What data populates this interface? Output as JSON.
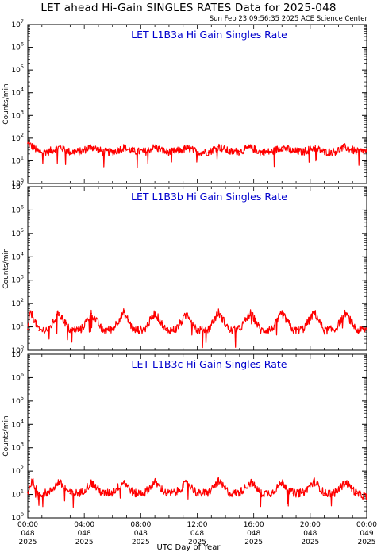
{
  "header": {
    "title": "LET ahead Hi-Gain SINGLES RATES Data for 2025-048",
    "timestamp": "Sun Feb 23 09:56:35 2025 ACE Science Center"
  },
  "colors": {
    "data": "#ff0000",
    "panel_title": "#0000cc",
    "axes": "#000000"
  },
  "x_axis": {
    "label": "UTC Day of Year",
    "ticks": [
      {
        "time": "00:00",
        "day": "048",
        "year": "2025"
      },
      {
        "time": "04:00",
        "day": "048",
        "year": "2025"
      },
      {
        "time": "08:00",
        "day": "048",
        "year": "2025"
      },
      {
        "time": "12:00",
        "day": "048",
        "year": "2025"
      },
      {
        "time": "16:00",
        "day": "048",
        "year": "2025"
      },
      {
        "time": "20:00",
        "day": "048",
        "year": "2025"
      },
      {
        "time": "00:00",
        "day": "049",
        "year": "2025"
      }
    ]
  },
  "y_axis": {
    "label": "Counts/min",
    "scale": "log",
    "tick_labels": [
      {
        "base": "10",
        "exp": "0"
      },
      {
        "base": "10",
        "exp": "1"
      },
      {
        "base": "10",
        "exp": "2"
      },
      {
        "base": "10",
        "exp": "3"
      },
      {
        "base": "10",
        "exp": "4"
      },
      {
        "base": "10",
        "exp": "5"
      },
      {
        "base": "10",
        "exp": "6"
      },
      {
        "base": "10",
        "exp": "7"
      }
    ]
  },
  "chart_data": [
    {
      "type": "line",
      "title": "LET L1B3a Hi Gain Singles Rate",
      "xlabel": "UTC Day of Year",
      "ylabel": "Counts/min",
      "xlim": [
        0,
        24
      ],
      "ylim": [
        1,
        10000000
      ],
      "yscale": "log",
      "series": [
        {
          "x_hours": [
            0,
            0.8,
            1.5,
            2.3,
            3,
            3.8,
            4.5,
            5.3,
            6,
            6.8,
            7.5,
            8.3,
            9,
            9.8,
            10.5,
            11.3,
            12,
            12.8,
            13.5,
            14.3,
            15,
            15.8,
            16.5,
            17.3,
            18,
            18.8,
            19.5,
            20.3,
            21,
            21.8,
            22.5,
            23.3,
            24
          ],
          "values": [
            60,
            25,
            26,
            40,
            24,
            26,
            42,
            25,
            24,
            38,
            26,
            25,
            40,
            24,
            26,
            36,
            25,
            24,
            42,
            25,
            26,
            38,
            24,
            25,
            40,
            26,
            25,
            38,
            24,
            26,
            40,
            25,
            27
          ]
        }
      ]
    },
    {
      "type": "line",
      "title": "LET L1B3b Hi Gain Singles Rate",
      "xlabel": "UTC Day of Year",
      "ylabel": "Counts/min",
      "xlim": [
        0,
        24
      ],
      "ylim": [
        1,
        10000000
      ],
      "yscale": "log",
      "series": [
        {
          "x_hours": [
            0,
            0.2,
            0.8,
            1.5,
            2.2,
            3,
            3.8,
            4.5,
            5.3,
            6,
            6.8,
            7.5,
            8.3,
            9,
            9.8,
            10.5,
            11.3,
            12,
            12.8,
            13.5,
            14.3,
            15,
            15.8,
            16.5,
            17.3,
            18,
            18.8,
            19.5,
            20.3,
            21,
            21.8,
            22.5,
            23.3,
            24
          ],
          "values": [
            8,
            45,
            7,
            8,
            40,
            7,
            8,
            38,
            7,
            8,
            42,
            7,
            8,
            40,
            7,
            8,
            38,
            7,
            8,
            42,
            7,
            8,
            40,
            7,
            8,
            38,
            7,
            8,
            42,
            7,
            8,
            40,
            7,
            8
          ]
        }
      ]
    },
    {
      "type": "line",
      "title": "LET L1B3c Hi Gain Singles Rate",
      "xlabel": "UTC Day of Year",
      "ylabel": "Counts/min",
      "xlim": [
        0,
        24
      ],
      "ylim": [
        1,
        10000000
      ],
      "yscale": "log",
      "series": [
        {
          "x_hours": [
            0,
            0.3,
            0.8,
            1.5,
            2.2,
            3,
            3.8,
            4.5,
            5.3,
            6,
            6.8,
            7.5,
            8.3,
            9,
            9.8,
            10.5,
            11.3,
            12,
            12.8,
            13.5,
            14.3,
            15,
            15.8,
            16.5,
            17.3,
            18,
            18.8,
            19.5,
            20.3,
            21,
            21.8,
            22.5,
            23.3,
            24
          ],
          "values": [
            12,
            40,
            11,
            12,
            35,
            11,
            12,
            32,
            11,
            12,
            36,
            11,
            12,
            34,
            11,
            12,
            33,
            11,
            12,
            36,
            11,
            12,
            34,
            11,
            12,
            33,
            11,
            12,
            36,
            11,
            12,
            34,
            11,
            8
          ]
        }
      ]
    }
  ]
}
